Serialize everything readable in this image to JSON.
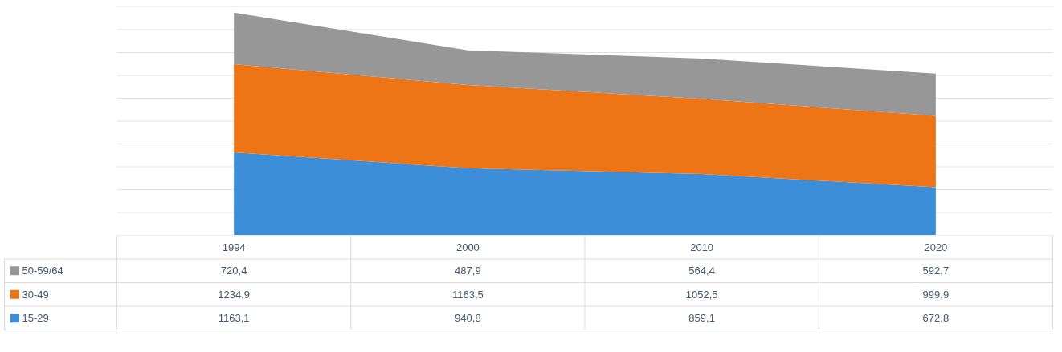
{
  "chart_data": {
    "type": "area",
    "stacked": true,
    "categories": [
      "1994",
      "2000",
      "2010",
      "2020"
    ],
    "series": [
      {
        "name": "15-29",
        "color": "#3d8ed8",
        "values": [
          1163.1,
          940.8,
          859.1,
          672.8
        ],
        "value_labels": [
          "1163,1",
          "940,8",
          "859,1",
          "672,8"
        ]
      },
      {
        "name": "30-49",
        "color": "#ee7516",
        "values": [
          1234.9,
          1163.5,
          1052.5,
          999.9
        ],
        "value_labels": [
          "1234,9",
          "1163,5",
          "1052,5",
          "999,9"
        ]
      },
      {
        "name": "50-59/64",
        "color": "#979797",
        "values": [
          720.4,
          487.9,
          564.4,
          592.7
        ],
        "value_labels": [
          "720,4",
          "487,9",
          "564,4",
          "592,7"
        ]
      }
    ],
    "ylim": [
      0,
      3200
    ],
    "yticks": [
      {
        "value": 0,
        "label": null
      },
      {
        "value": 320,
        "label": null
      },
      {
        "value": 640,
        "label": null
      },
      {
        "value": 960,
        "label": null
      },
      {
        "value": 1280,
        "label": null
      },
      {
        "value": 1600,
        "label": null
      },
      {
        "value": 1920,
        "label": null
      },
      {
        "value": 2240,
        "label": null
      },
      {
        "value": 2560,
        "label": null
      },
      {
        "value": 2880,
        "label": null
      },
      {
        "value": 3200,
        "label": null
      }
    ],
    "grid": "y",
    "legend": "bottom left",
    "tick_labels": false
  }
}
